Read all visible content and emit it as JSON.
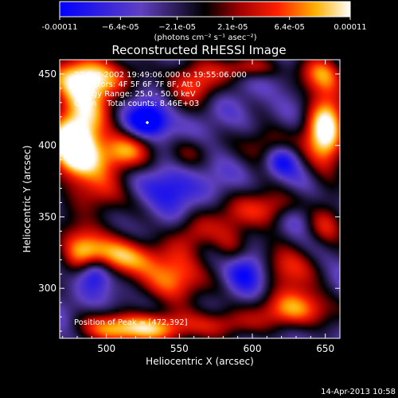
{
  "chart_data": {
    "type": "heatmap",
    "title": "Reconstructed RHESSI Image",
    "xlabel": "Heliocentric X (arcsec)",
    "ylabel": "Heliocentric Y (arcsec)",
    "xlim": [
      468,
      660
    ],
    "ylim": [
      265,
      460
    ],
    "x_ticks": [
      500,
      550,
      600,
      650
    ],
    "y_ticks": [
      300,
      350,
      400,
      450
    ],
    "grid": false,
    "colorbar": {
      "tick_labels": [
        "-0.00011",
        "−6.4e-05",
        "−2.1e-05",
        "2.1e-05",
        "6.4e-05",
        "0.00011"
      ],
      "tick_values": [
        -0.00011,
        -6.4e-05,
        -2.1e-05,
        2.1e-05,
        6.4e-05,
        0.00011
      ],
      "range": [
        -0.00011,
        0.00011
      ],
      "units_label": "(photons cm⁻² s⁻¹ asec⁻²)"
    },
    "annotations": {
      "time": "27-Oct-2002 19:49:06.000 to 19:55:06.000",
      "detectors": "Detectors: 4F 5F 6F 7F 8F, Att 0",
      "energy": "Energy Range: 25.0 - 50.0 keV",
      "clean": "Clean    Total counts: 8.46E+03",
      "peak": "Position of Peak = [472,392]"
    },
    "footer": "14-Apr-2013 10:58",
    "peak_position": [
      472,
      392
    ],
    "marker_position": [
      528,
      416
    ],
    "hot_regions": [
      {
        "x": 482,
        "y": 425,
        "sx": 16,
        "sy": 25,
        "v": 1.0
      },
      {
        "x": 478,
        "y": 395,
        "sx": 12,
        "sy": 15,
        "v": 1.2
      },
      {
        "x": 492,
        "y": 448,
        "sx": 18,
        "sy": 10,
        "v": 0.9
      },
      {
        "x": 512,
        "y": 395,
        "sx": 14,
        "sy": 10,
        "v": 0.9
      },
      {
        "x": 498,
        "y": 365,
        "sx": 14,
        "sy": 12,
        "v": 0.6
      },
      {
        "x": 512,
        "y": 322,
        "sx": 20,
        "sy": 10,
        "v": 1.1
      },
      {
        "x": 482,
        "y": 330,
        "sx": 12,
        "sy": 14,
        "v": 0.8
      },
      {
        "x": 520,
        "y": 272,
        "sx": 25,
        "sy": 8,
        "v": 1.3
      },
      {
        "x": 548,
        "y": 305,
        "sx": 15,
        "sy": 12,
        "v": 1.0
      },
      {
        "x": 560,
        "y": 340,
        "sx": 12,
        "sy": 10,
        "v": 0.6
      },
      {
        "x": 555,
        "y": 395,
        "sx": 10,
        "sy": 8,
        "v": 0.5
      },
      {
        "x": 560,
        "y": 445,
        "sx": 14,
        "sy": 12,
        "v": 0.9
      },
      {
        "x": 600,
        "y": 455,
        "sx": 14,
        "sy": 6,
        "v": 0.7
      },
      {
        "x": 610,
        "y": 400,
        "sx": 14,
        "sy": 10,
        "v": 0.7
      },
      {
        "x": 650,
        "y": 410,
        "sx": 10,
        "sy": 20,
        "v": 1.4
      },
      {
        "x": 648,
        "y": 450,
        "sx": 12,
        "sy": 10,
        "v": 0.8
      },
      {
        "x": 610,
        "y": 355,
        "sx": 20,
        "sy": 10,
        "v": 0.9
      },
      {
        "x": 585,
        "y": 330,
        "sx": 10,
        "sy": 12,
        "v": 0.6
      },
      {
        "x": 625,
        "y": 315,
        "sx": 14,
        "sy": 12,
        "v": 0.8
      },
      {
        "x": 652,
        "y": 345,
        "sx": 10,
        "sy": 10,
        "v": 0.7
      },
      {
        "x": 630,
        "y": 285,
        "sx": 20,
        "sy": 10,
        "v": 1.0
      },
      {
        "x": 580,
        "y": 275,
        "sx": 14,
        "sy": 8,
        "v": 0.7
      }
    ],
    "cold_regions": [
      {
        "x": 528,
        "y": 417,
        "sx": 10,
        "sy": 8,
        "v": 0.9
      },
      {
        "x": 492,
        "y": 312,
        "sx": 8,
        "sy": 8,
        "v": 0.8
      },
      {
        "x": 595,
        "y": 312,
        "sx": 10,
        "sy": 10,
        "v": 0.7
      },
      {
        "x": 620,
        "y": 390,
        "sx": 8,
        "sy": 8,
        "v": 0.7
      },
      {
        "x": 545,
        "y": 370,
        "sx": 12,
        "sy": 10,
        "v": 0.5
      },
      {
        "x": 630,
        "y": 350,
        "sx": 10,
        "sy": 8,
        "v": 0.6
      }
    ]
  }
}
